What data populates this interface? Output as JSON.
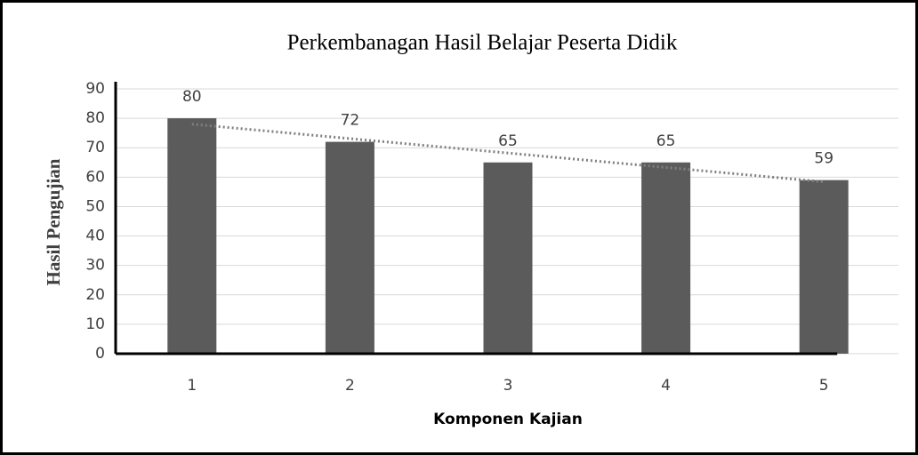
{
  "chart_data": {
    "type": "bar",
    "title": "Perkembanagan Hasil Belajar Peserta Didik",
    "x_label": "Komponen Kajian",
    "y_label": "Hasil Pengujian",
    "categories": [
      "1",
      "2",
      "3",
      "4",
      "5"
    ],
    "values": [
      80,
      72,
      65,
      65,
      59
    ],
    "color": "#5b5b5b",
    "ylim": [
      0,
      90
    ],
    "yticks": [
      0,
      10,
      20,
      30,
      40,
      50,
      60,
      70,
      80,
      90
    ],
    "grid": true,
    "trendline": "linear",
    "data_labels": true
  }
}
